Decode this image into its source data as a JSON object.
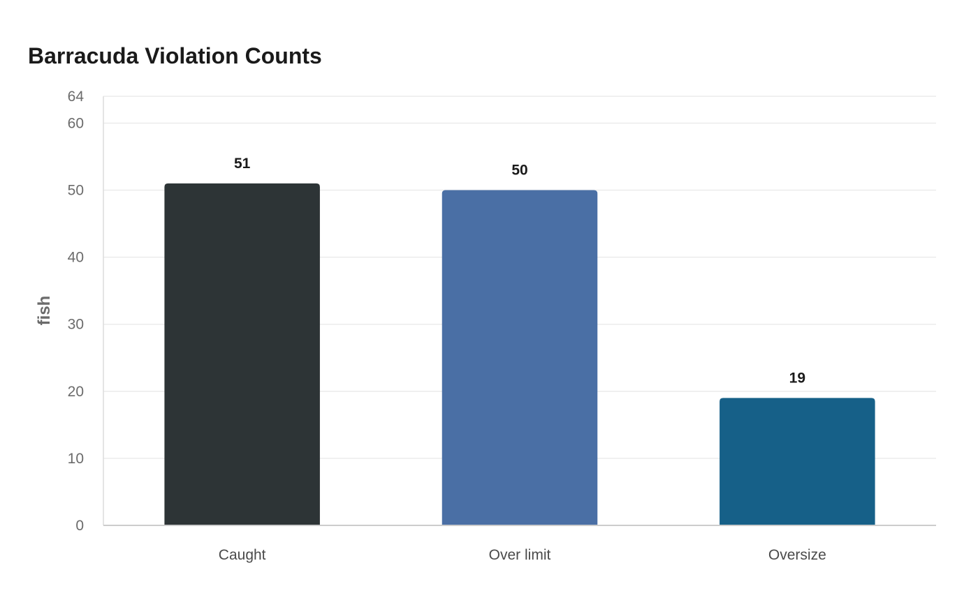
{
  "chart_data": {
    "type": "bar",
    "title": "Barracuda Violation Counts",
    "xlabel": "",
    "ylabel": "fish",
    "categories": [
      "Caught",
      "Over limit",
      "Oversize"
    ],
    "values": [
      51,
      50,
      19
    ],
    "colors": [
      "#2d3436",
      "#4a6fa5",
      "#166088"
    ],
    "ylim": [
      0,
      64
    ],
    "yticks": [
      0,
      10,
      20,
      30,
      40,
      50,
      60,
      64
    ],
    "grid": true,
    "legend": "none"
  }
}
